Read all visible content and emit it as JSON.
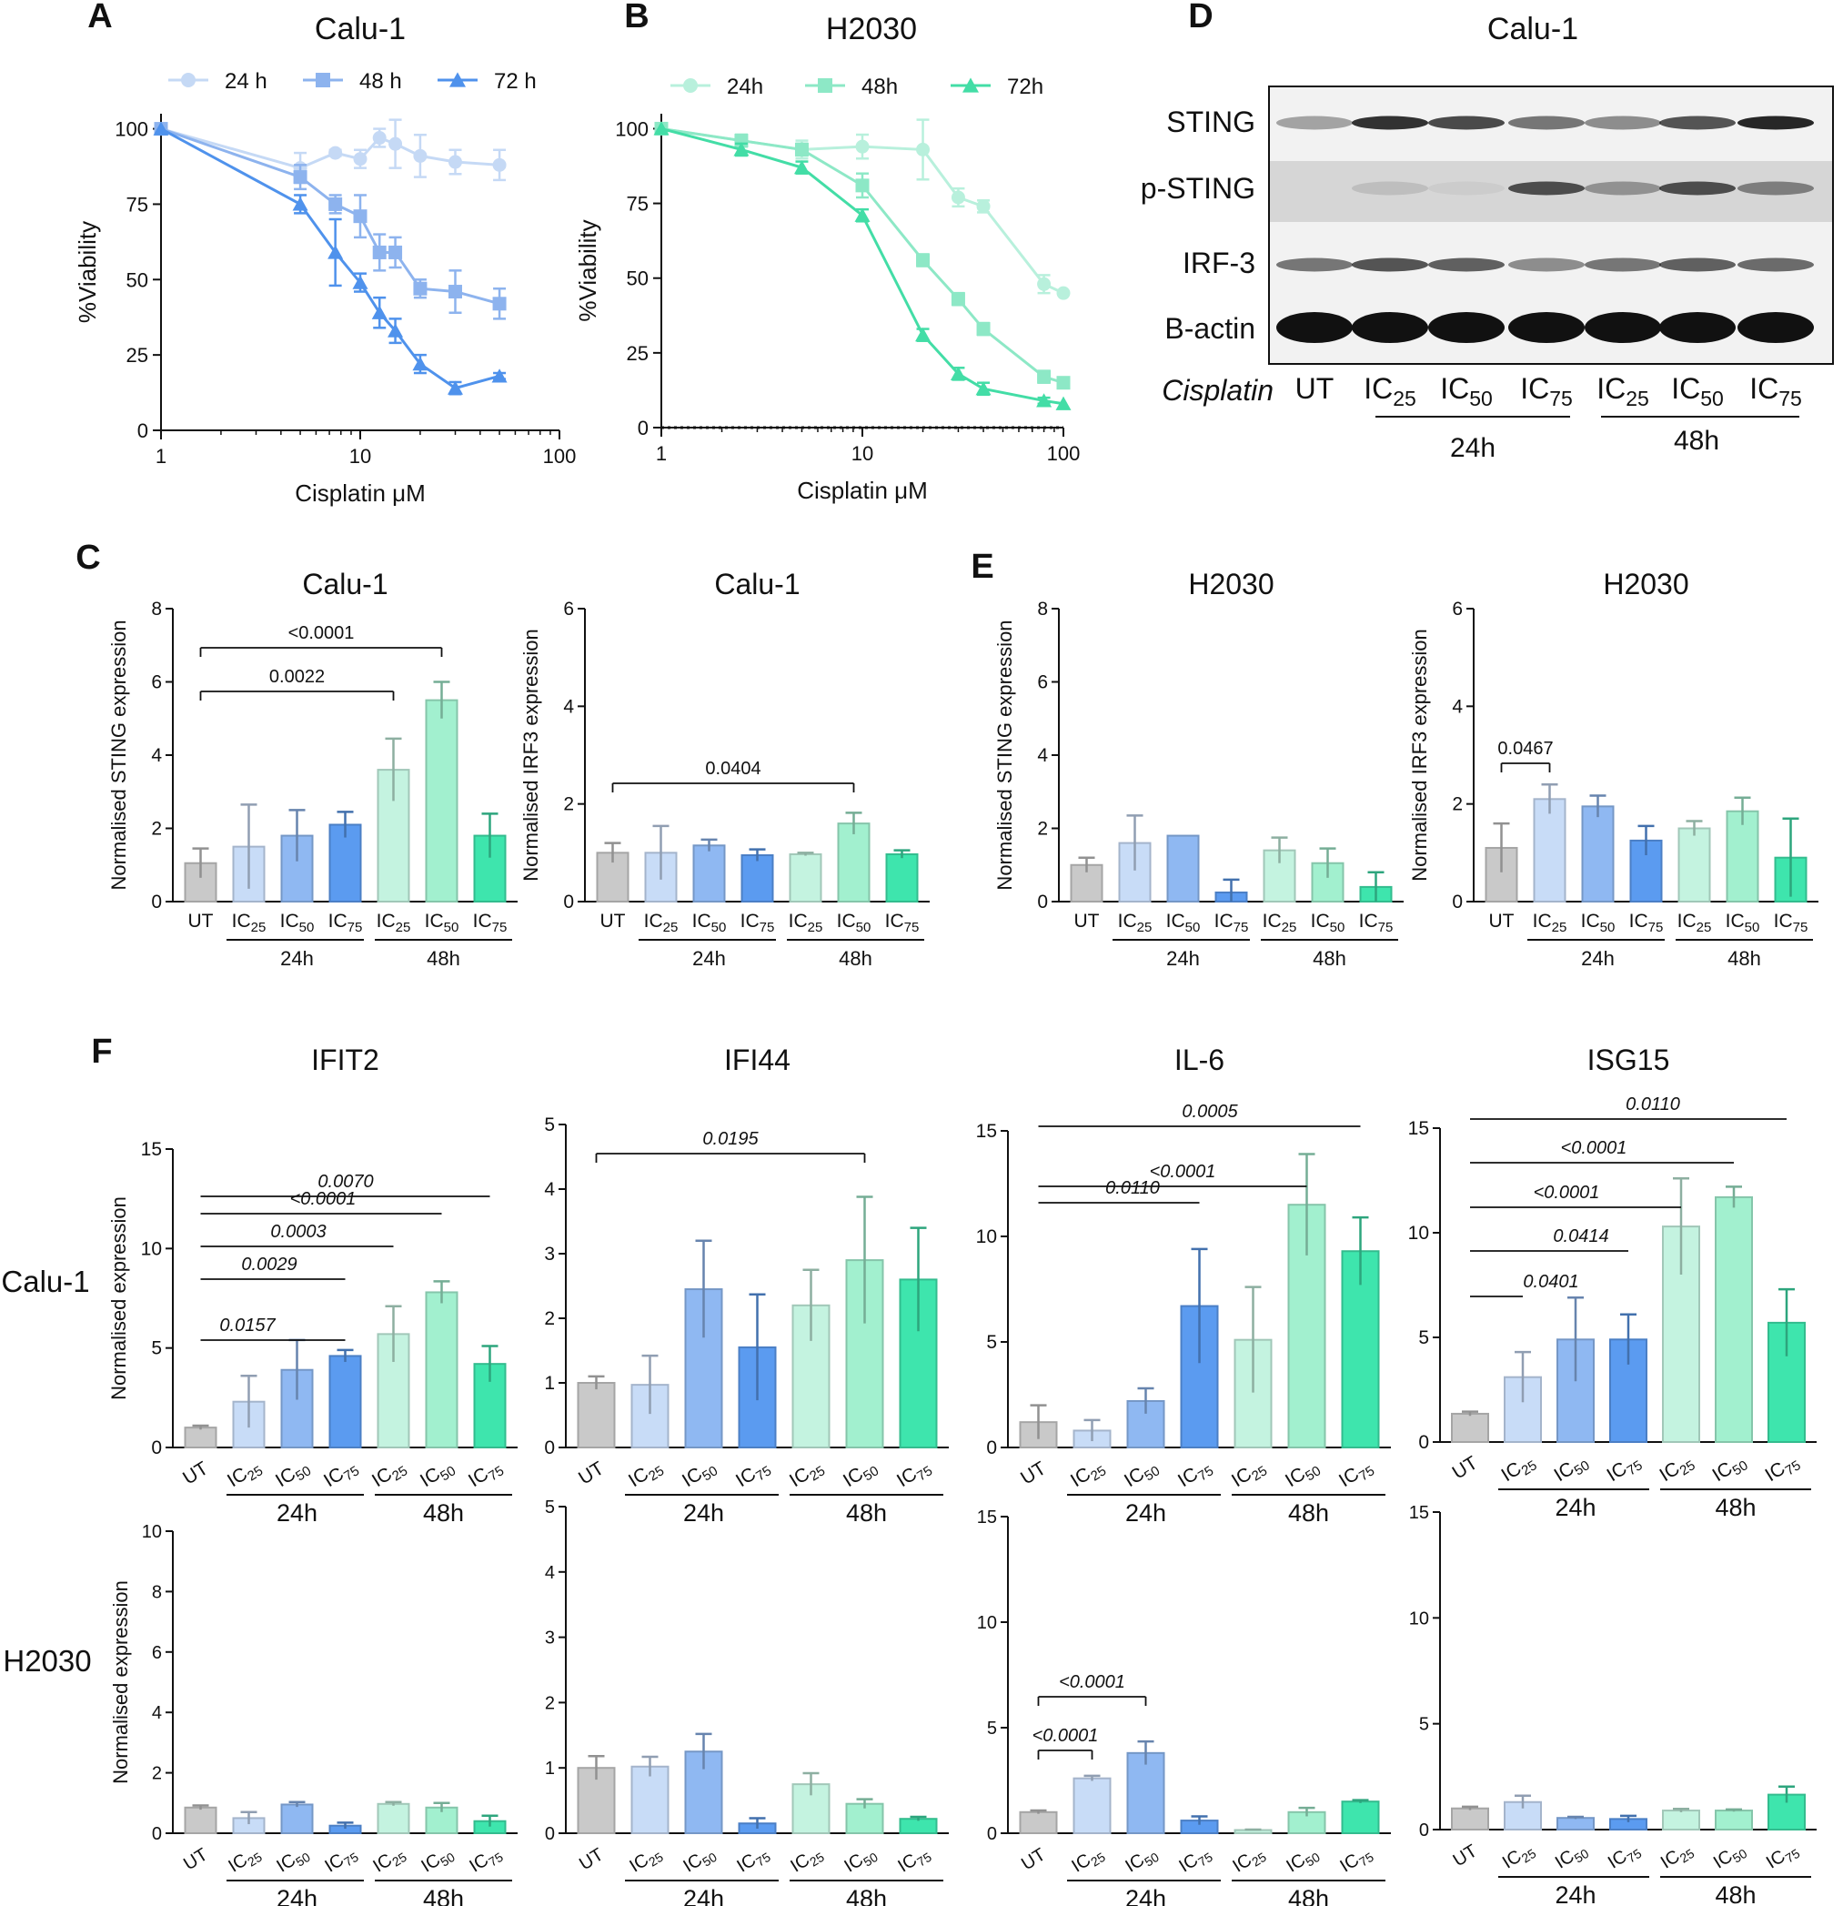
{
  "panel_letters": [
    "A",
    "B",
    "C",
    "D",
    "E",
    "F"
  ],
  "colors": {
    "UT": "#c9c9c9",
    "IC25_24h": "#c8dcf7",
    "IC50_24h": "#8fb8f2",
    "IC75_24h": "#5b9bf0",
    "IC25_48h": "#c4f3e0",
    "IC50_48h": "#a2f0cf",
    "IC75_48h": "#3ee5ad",
    "line_24": "#c5d9f5",
    "line_48": "#8db3ee",
    "line_72": "#4f92ec",
    "h_24": "#b8f0dc",
    "h_48": "#8de8c6",
    "h_72": "#43dda6"
  },
  "bar_categories": [
    "UT",
    "IC25",
    "IC50",
    "IC75",
    "IC25",
    "IC50",
    "IC75"
  ],
  "group_labels": [
    "24h",
    "48h"
  ],
  "western_blot": {
    "title": "Calu-1",
    "rows": [
      "STING",
      "p-STING",
      "IRF-3",
      "B-actin"
    ],
    "treatment_label": "Cisplatin",
    "lanes": [
      "UT",
      "IC25",
      "IC50",
      "IC75",
      "IC25",
      "IC50",
      "IC75"
    ],
    "groups": [
      "24h",
      "48h"
    ]
  },
  "chart_data": [
    {
      "panel": "A",
      "type": "line",
      "title": "Calu-1",
      "xlabel": "Cisplatin μM",
      "ylabel": "%Viability",
      "xscale": "log",
      "xlim": [
        1,
        100
      ],
      "ylim": [
        0,
        105
      ],
      "xticks": [
        "1",
        "10",
        "100"
      ],
      "yticks": [
        "0",
        "25",
        "50",
        "75",
        "100"
      ],
      "legend": "top",
      "series": [
        {
          "name": "24 h",
          "marker": "circle",
          "x": [
            1,
            5,
            7.5,
            10,
            12.5,
            15,
            20,
            30,
            50
          ],
          "values": [
            100,
            87,
            92,
            90,
            97,
            95,
            91,
            89,
            88
          ],
          "err": [
            0,
            5,
            1,
            3,
            3,
            8,
            7,
            4,
            5
          ]
        },
        {
          "name": "48 h",
          "marker": "square",
          "x": [
            1,
            5,
            7.5,
            10,
            12.5,
            15,
            20,
            30,
            50
          ],
          "values": [
            100,
            84,
            75,
            71,
            59,
            59,
            47,
            46,
            42
          ],
          "err": [
            0,
            4,
            3,
            7,
            6,
            5,
            3,
            7,
            5
          ]
        },
        {
          "name": "72 h",
          "marker": "triangle",
          "x": [
            1,
            5,
            7.5,
            10,
            12.5,
            15,
            20,
            30,
            50
          ],
          "values": [
            100,
            75,
            59,
            49,
            39,
            33,
            22,
            14,
            18
          ],
          "err": [
            0,
            3,
            11,
            3,
            5,
            4,
            3,
            2,
            1
          ]
        }
      ]
    },
    {
      "panel": "B",
      "type": "line",
      "title": "H2030",
      "xlabel": "Cisplatin μM",
      "ylabel": "%Viability",
      "xscale": "log",
      "xlim": [
        1,
        100
      ],
      "ylim": [
        0,
        105
      ],
      "xticks": [
        "1",
        "10",
        "100"
      ],
      "yticks": [
        "0",
        "25",
        "50",
        "75",
        "100"
      ],
      "legend": "top",
      "series": [
        {
          "name": "24h",
          "marker": "circle",
          "x": [
            1,
            2.5,
            5,
            10,
            20,
            30,
            40,
            80,
            100
          ],
          "values": [
            100,
            96,
            93,
            94,
            93,
            77,
            74,
            48,
            45
          ],
          "err": [
            0,
            2,
            3,
            4,
            10,
            3,
            2,
            3,
            0
          ]
        },
        {
          "name": "48h",
          "marker": "square",
          "x": [
            1,
            2.5,
            5,
            10,
            20,
            30,
            40,
            80,
            100
          ],
          "values": [
            100,
            96,
            93,
            81,
            56,
            43,
            33,
            17,
            15
          ],
          "err": [
            0,
            2,
            2,
            4,
            2,
            2,
            2,
            2,
            0
          ]
        },
        {
          "name": "72h",
          "marker": "triangle",
          "x": [
            1,
            2.5,
            5,
            10,
            20,
            30,
            40,
            80,
            100
          ],
          "values": [
            100,
            93,
            87,
            71,
            31,
            18,
            13,
            9,
            8
          ],
          "err": [
            0,
            2,
            2,
            2,
            2,
            2,
            2,
            1,
            0
          ]
        }
      ]
    },
    {
      "panel": "C",
      "type": "bar",
      "title": "Calu-1",
      "ylabel": "Normalised STING expression",
      "ylim": [
        0,
        8
      ],
      "yticks": [
        "0",
        "2",
        "4",
        "6",
        "8"
      ],
      "values": [
        1.05,
        1.5,
        1.8,
        2.1,
        3.6,
        5.5,
        1.8
      ],
      "err": [
        0.4,
        1.15,
        0.7,
        0.35,
        0.85,
        0.5,
        0.6
      ],
      "annotations": [
        {
          "text": "0.0022",
          "from": 0,
          "to": 4
        },
        {
          "text": "<0.0001",
          "from": 0,
          "to": 5
        }
      ]
    },
    {
      "panel": "C",
      "type": "bar",
      "title": "Calu-1",
      "ylabel": "Normalised IRF3 expression",
      "ylim": [
        0,
        6
      ],
      "yticks": [
        "0",
        "2",
        "4",
        "6"
      ],
      "values": [
        1.0,
        1.0,
        1.15,
        0.95,
        0.97,
        1.6,
        0.97
      ],
      "err": [
        0.2,
        0.55,
        0.12,
        0.12,
        0.03,
        0.22,
        0.08
      ],
      "annotations": [
        {
          "text": "0.0404",
          "from": 0,
          "to": 5
        }
      ]
    },
    {
      "panel": "E",
      "type": "bar",
      "title": "H2030",
      "ylabel": "Normalised STING expression",
      "ylim": [
        0,
        8
      ],
      "yticks": [
        "0",
        "2",
        "4",
        "6",
        "8"
      ],
      "values": [
        1.0,
        1.6,
        1.8,
        0.25,
        1.4,
        1.05,
        0.4
      ],
      "err": [
        0.2,
        0.75,
        0.0,
        0.35,
        0.35,
        0.4,
        0.4
      ],
      "annotations": []
    },
    {
      "panel": "E",
      "type": "bar",
      "title": "H2030",
      "ylabel": "Normalised IRF3 expression",
      "ylim": [
        0,
        6
      ],
      "yticks": [
        "0",
        "2",
        "4",
        "6"
      ],
      "values": [
        1.1,
        2.1,
        1.95,
        1.25,
        1.5,
        1.85,
        0.9
      ],
      "err": [
        0.5,
        0.3,
        0.22,
        0.3,
        0.15,
        0.28,
        0.8
      ],
      "annotations": [
        {
          "text": "0.0467",
          "from": 0,
          "to": 1
        }
      ]
    },
    {
      "panel": "F",
      "type": "bar",
      "title": "IFIT2",
      "row_label": "Calu-1",
      "ylabel": "Normalised expression",
      "ylim": [
        0,
        15
      ],
      "yticks": [
        "0",
        "5",
        "10",
        "15"
      ],
      "values": [
        1.0,
        2.3,
        3.9,
        4.6,
        5.7,
        7.8,
        4.2
      ],
      "err": [
        0.1,
        1.3,
        1.5,
        0.3,
        1.4,
        0.55,
        0.9
      ],
      "annotations": [
        {
          "text": "0.0157",
          "from": 0,
          "to": 3
        },
        {
          "text": "0.0029",
          "from": 0,
          "to": 3
        },
        {
          "text": "0.0003",
          "from": 0,
          "to": 4
        },
        {
          "text": "<0.0001",
          "from": 0,
          "to": 5
        },
        {
          "text": "0.0070",
          "from": 0,
          "to": 6
        }
      ]
    },
    {
      "panel": "F",
      "type": "bar",
      "title": "IFI44",
      "ylabel": "",
      "ylim": [
        0,
        5
      ],
      "yticks": [
        "0",
        "1",
        "2",
        "3",
        "4",
        "5"
      ],
      "values": [
        1.0,
        0.97,
        2.45,
        1.55,
        2.2,
        2.9,
        2.6
      ],
      "err": [
        0.1,
        0.45,
        0.75,
        0.82,
        0.55,
        0.98,
        0.8
      ],
      "annotations": [
        {
          "text": "0.0195",
          "from": 0,
          "to": 5
        }
      ]
    },
    {
      "panel": "F",
      "type": "bar",
      "title": "IL-6",
      "ylabel": "",
      "ylim": [
        0,
        15
      ],
      "yticks": [
        "0",
        "5",
        "10",
        "15"
      ],
      "values": [
        1.2,
        0.8,
        2.2,
        6.7,
        5.1,
        11.5,
        9.3
      ],
      "err": [
        0.8,
        0.5,
        0.6,
        2.7,
        2.5,
        2.4,
        1.6
      ],
      "annotations": [
        {
          "text": "0.0110",
          "from": 0,
          "to": 3
        },
        {
          "text": "<0.0001",
          "from": 0,
          "to": 5
        },
        {
          "text": "0.0005",
          "from": 0,
          "to": 6
        }
      ]
    },
    {
      "panel": "F",
      "type": "bar",
      "title": "ISG15",
      "ylabel": "",
      "ylim": [
        0,
        15
      ],
      "yticks": [
        "0",
        "5",
        "10",
        "15"
      ],
      "values": [
        1.35,
        3.1,
        4.9,
        4.9,
        10.3,
        11.7,
        5.7
      ],
      "err": [
        0.1,
        1.2,
        2.0,
        1.2,
        2.3,
        0.5,
        1.6
      ],
      "annotations": [
        {
          "text": "0.0401",
          "from": 0,
          "to": 1
        },
        {
          "text": "0.0414",
          "from": 0,
          "to": 3
        },
        {
          "text": "<0.0001",
          "from": 0,
          "to": 4
        },
        {
          "text": "<0.0001",
          "from": 0,
          "to": 5
        },
        {
          "text": "0.0110",
          "from": 0,
          "to": 6
        }
      ]
    },
    {
      "panel": "F",
      "type": "bar",
      "title": "",
      "row_label": "H2030",
      "ylabel": "Normalised expression",
      "ylim": [
        0,
        10
      ],
      "yticks": [
        "0",
        "2",
        "4",
        "6",
        "8",
        "10"
      ],
      "values": [
        0.85,
        0.5,
        0.95,
        0.25,
        0.97,
        0.85,
        0.4
      ],
      "err": [
        0.07,
        0.2,
        0.08,
        0.1,
        0.06,
        0.15,
        0.18
      ],
      "annotations": []
    },
    {
      "panel": "F",
      "type": "bar",
      "title": "",
      "ylabel": "",
      "ylim": [
        0,
        5
      ],
      "yticks": [
        "0",
        "1",
        "2",
        "3",
        "4",
        "5"
      ],
      "values": [
        1.0,
        1.02,
        1.25,
        0.15,
        0.75,
        0.45,
        0.22
      ],
      "err": [
        0.18,
        0.15,
        0.27,
        0.08,
        0.17,
        0.07,
        0.03
      ],
      "annotations": []
    },
    {
      "panel": "F",
      "type": "bar",
      "title": "",
      "ylabel": "",
      "ylim": [
        0,
        15
      ],
      "yticks": [
        "0",
        "5",
        "10",
        "15"
      ],
      "values": [
        1.0,
        2.6,
        3.8,
        0.6,
        0.15,
        1.0,
        1.5
      ],
      "err": [
        0.08,
        0.12,
        0.55,
        0.2,
        0.02,
        0.2,
        0.07
      ],
      "annotations": [
        {
          "text": "<0.0001",
          "from": 0,
          "to": 1
        },
        {
          "text": "<0.0001",
          "from": 0,
          "to": 2
        }
      ]
    },
    {
      "panel": "F",
      "type": "bar",
      "title": "",
      "ylabel": "",
      "ylim": [
        0,
        15
      ],
      "yticks": [
        "0",
        "5",
        "10",
        "15"
      ],
      "values": [
        1.0,
        1.3,
        0.55,
        0.5,
        0.9,
        0.9,
        1.65
      ],
      "err": [
        0.08,
        0.3,
        0.05,
        0.15,
        0.08,
        0.05,
        0.38
      ],
      "annotations": []
    }
  ]
}
